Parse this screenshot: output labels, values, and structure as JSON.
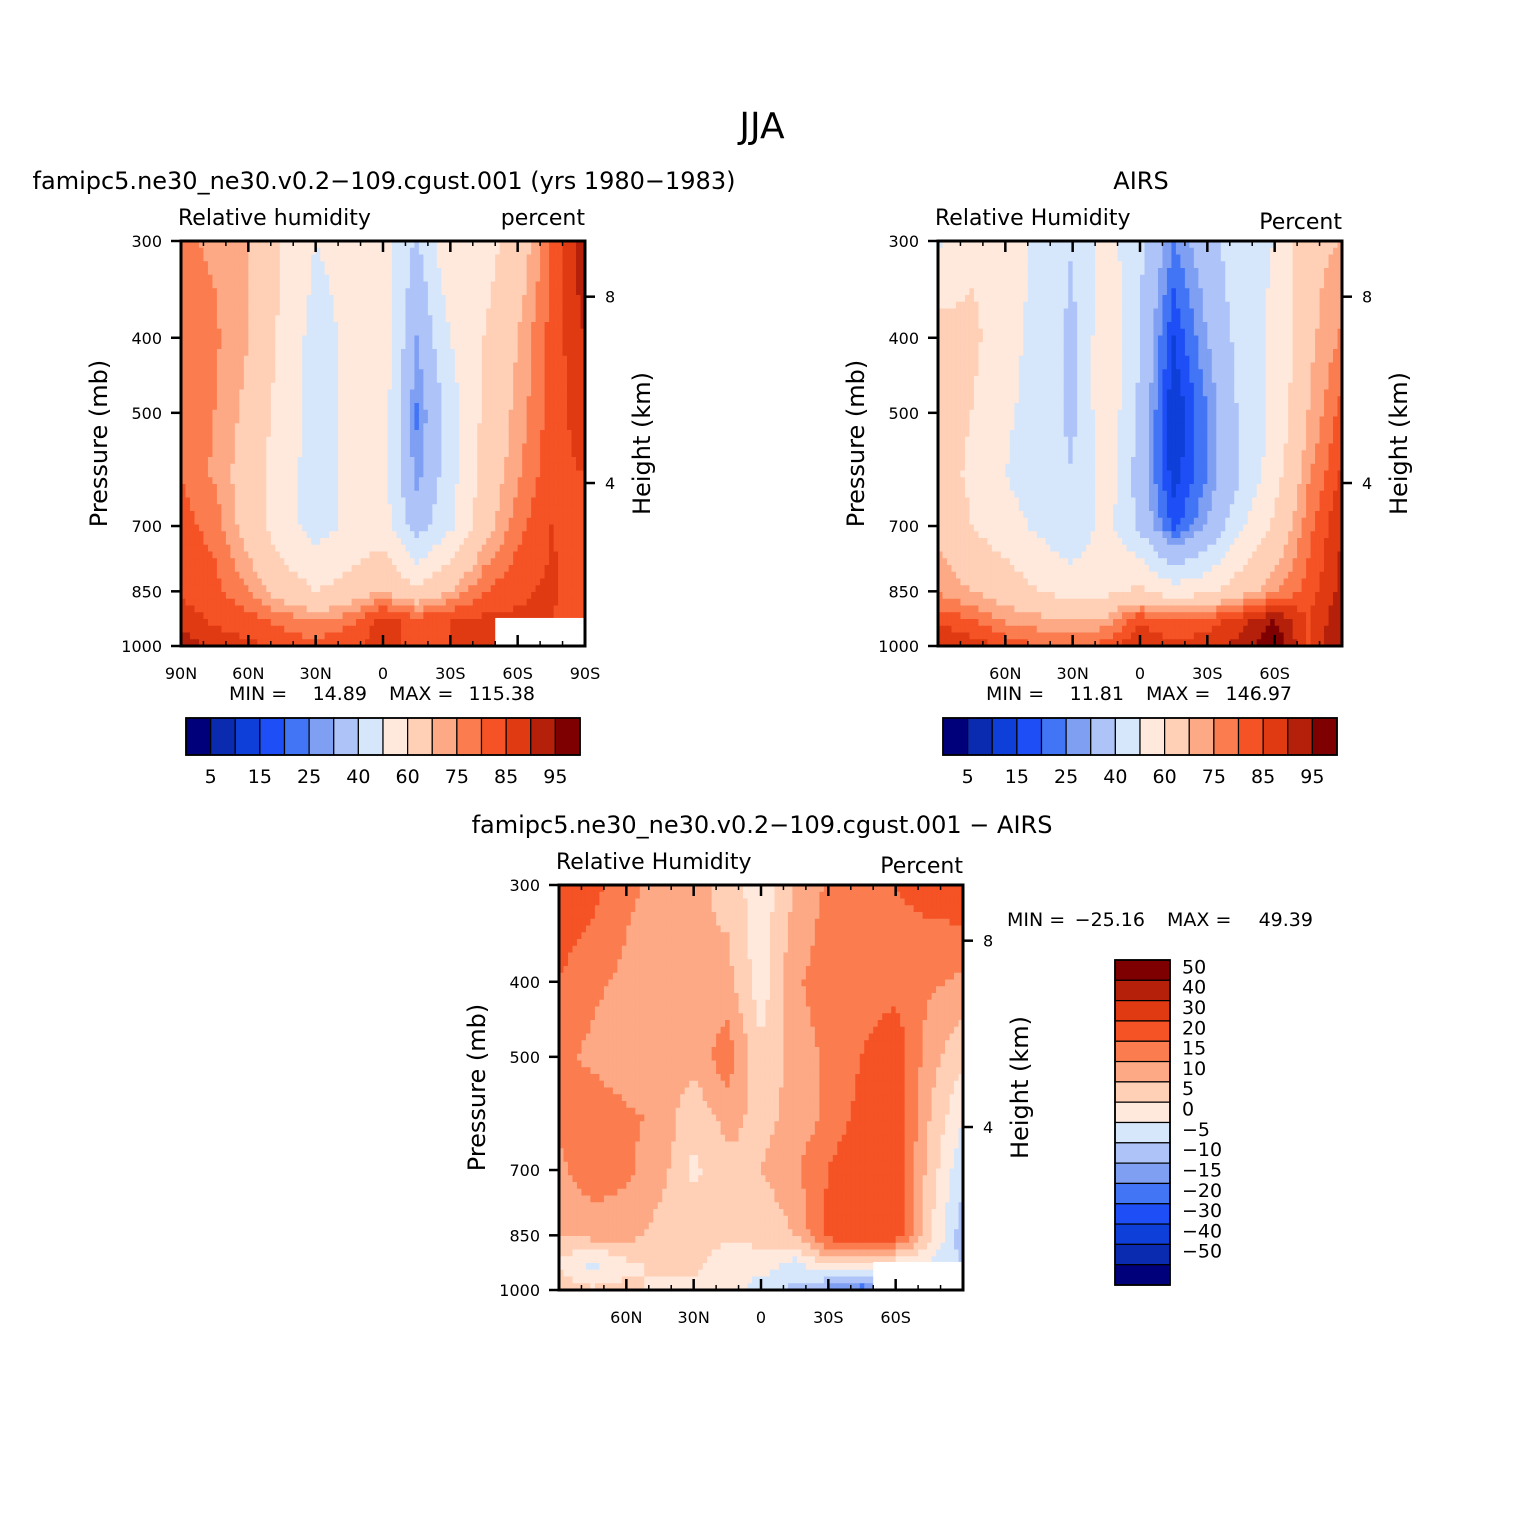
{
  "page_title": "JJA",
  "colors": {
    "neg": [
      "#00007a",
      "#0a2bb0",
      "#0f3fd9",
      "#1e4ef5",
      "#4275f5",
      "#7f9ff3",
      "#aec4f9",
      "#d7e7fb"
    ],
    "pos": [
      "#ffe9dc",
      "#ffcfb6",
      "#fda985",
      "#fb7c4f",
      "#f55225",
      "#e03a12",
      "#b5200a",
      "#7f0000"
    ],
    "missing": "#ffffff"
  },
  "chart_data": [
    {
      "id": "model",
      "type": "heatmap",
      "subtype": "filled-contour",
      "title": "famipc5.ne30_ne30.v0.2−109.cgust.001 (yrs 1980−1983)",
      "left_label": "Relative humidity",
      "right_label": "percent",
      "ylabel": "Pressure (mb)",
      "y2label": "Height (km)",
      "x_ticks": [
        "90N",
        "60N",
        "30N",
        "0",
        "30S",
        "60S",
        "90S"
      ],
      "x_range": [
        90,
        -90
      ],
      "y_ticks": [
        "300",
        "400",
        "500",
        "700",
        "850",
        "1000"
      ],
      "y_range": [
        300,
        1000
      ],
      "y_scale": "log",
      "y2_ticks": [
        "8",
        "4"
      ],
      "minmax_text": {
        "min_label": "MIN =",
        "min": "14.89",
        "max_label": "MAX =",
        "max": "115.38"
      },
      "levels": [
        5,
        10,
        15,
        20,
        25,
        30,
        40,
        50,
        60,
        70,
        75,
        80,
        85,
        90,
        95
      ],
      "colorbar_labels": [
        "5",
        "15",
        "25",
        "40",
        "60",
        "75",
        "85",
        "95"
      ],
      "colorbar_orientation": "horizontal",
      "field": {
        "lat": [
          90,
          75,
          60,
          45,
          30,
          15,
          0,
          -15,
          -30,
          -45,
          -60,
          -75,
          -90
        ],
        "pressure": [
          300,
          400,
          500,
          600,
          700,
          850,
          925,
          1000
        ],
        "values": [
          [
            76,
            74,
            70,
            60,
            50,
            53,
            56,
            38,
            60,
            56,
            64,
            80,
            95
          ],
          [
            78,
            76,
            70,
            58,
            46,
            52,
            56,
            30,
            50,
            60,
            70,
            82,
            90
          ],
          [
            78,
            75,
            68,
            56,
            46,
            52,
            56,
            24,
            45,
            62,
            72,
            82,
            88
          ],
          [
            80,
            74,
            66,
            54,
            46,
            52,
            54,
            27,
            46,
            64,
            74,
            84,
            85
          ],
          [
            82,
            78,
            66,
            54,
            46,
            52,
            55,
            35,
            48,
            66,
            78,
            85,
            83
          ],
          [
            84,
            82,
            75,
            66,
            60,
            64,
            70,
            62,
            70,
            80,
            84,
            86,
            82
          ],
          [
            88,
            84,
            82,
            78,
            74,
            78,
            88,
            82,
            85,
            86,
            86,
            85,
            82
          ],
          [
            94,
            88,
            86,
            84,
            82,
            85,
            86,
            84,
            85,
            86,
            86,
            84,
            82
          ]
        ],
        "missing_box": {
          "lat_from": -50,
          "lat_to": -90,
          "p_from": 920,
          "p_to": 1000
        }
      }
    },
    {
      "id": "obs",
      "type": "heatmap",
      "subtype": "filled-contour",
      "title": "AIRS",
      "left_label": "Relative Humidity",
      "right_label": "Percent",
      "ylabel": "Pressure (mb)",
      "y2label": "Height (km)",
      "x_ticks": [
        "60N",
        "30N",
        "0",
        "30S",
        "60S"
      ],
      "x_range": [
        90,
        -90
      ],
      "y_ticks": [
        "300",
        "400",
        "500",
        "700",
        "850",
        "1000"
      ],
      "y_range": [
        300,
        1000
      ],
      "y_scale": "log",
      "y2_ticks": [
        "8",
        "4"
      ],
      "minmax_text": {
        "min_label": "MIN =",
        "min": "11.81",
        "max_label": "MAX =",
        "max": "146.97"
      },
      "levels": [
        5,
        10,
        15,
        20,
        25,
        30,
        40,
        50,
        60,
        70,
        75,
        80,
        85,
        90,
        95
      ],
      "colorbar_labels": [
        "5",
        "15",
        "25",
        "40",
        "60",
        "75",
        "85",
        "95"
      ],
      "colorbar_orientation": "horizontal",
      "field": {
        "lat": [
          90,
          75,
          60,
          45,
          30,
          15,
          0,
          -15,
          -30,
          -45,
          -60,
          -75,
          -90
        ],
        "pressure": [
          300,
          400,
          500,
          600,
          700,
          850,
          925,
          1000
        ],
        "values": [
          [
            48,
            58,
            60,
            46,
            40,
            55,
            42,
            25,
            35,
            48,
            50,
            68,
            70
          ],
          [
            65,
            62,
            55,
            45,
            38,
            58,
            40,
            15,
            30,
            44,
            52,
            68,
            76
          ],
          [
            66,
            60,
            52,
            45,
            38,
            58,
            38,
            10,
            25,
            42,
            52,
            70,
            82
          ],
          [
            65,
            58,
            50,
            44,
            40,
            56,
            35,
            12,
            25,
            40,
            56,
            74,
            86
          ],
          [
            68,
            60,
            54,
            48,
            42,
            54,
            38,
            18,
            30,
            48,
            62,
            78,
            90
          ],
          [
            74,
            70,
            66,
            60,
            56,
            58,
            62,
            54,
            58,
            66,
            74,
            82,
            92
          ],
          [
            84,
            80,
            74,
            72,
            70,
            72,
            84,
            80,
            82,
            88,
            95,
            85,
            94
          ],
          [
            90,
            88,
            84,
            80,
            78,
            82,
            90,
            86,
            88,
            92,
            100,
            84,
            96
          ]
        ],
        "missing_box": null
      }
    },
    {
      "id": "diff",
      "type": "heatmap",
      "subtype": "filled-contour",
      "title": "famipc5.ne30_ne30.v0.2−109.cgust.001 − AIRS",
      "left_label": "Relative Humidity",
      "right_label": "Percent",
      "ylabel": "Pressure (mb)",
      "y2label": "Height (km)",
      "x_ticks": [
        "60N",
        "30N",
        "0",
        "30S",
        "60S"
      ],
      "x_range": [
        90,
        -90
      ],
      "y_ticks": [
        "300",
        "400",
        "500",
        "700",
        "850",
        "1000"
      ],
      "y_range": [
        300,
        1000
      ],
      "y_scale": "log",
      "y2_ticks": [
        "8",
        "4"
      ],
      "minmax_text": {
        "min_label": "MIN =",
        "min": "−25.16",
        "max_label": "MAX =",
        "max": "49.39"
      },
      "levels": [
        -50,
        -40,
        -30,
        -20,
        -15,
        -10,
        -5,
        0,
        5,
        10,
        15,
        20,
        30,
        40,
        50
      ],
      "colorbar_labels": [
        "50",
        "40",
        "30",
        "20",
        "15",
        "10",
        "5",
        "0",
        "−5",
        "−10",
        "−15",
        "−20",
        "−30",
        "−40",
        "−50"
      ],
      "colorbar_orientation": "vertical",
      "field": {
        "lat": [
          90,
          75,
          60,
          45,
          30,
          15,
          0,
          -15,
          -30,
          -45,
          -60,
          -75,
          -90
        ],
        "pressure": [
          300,
          400,
          500,
          600,
          700,
          850,
          925,
          1000
        ],
        "values": [
          [
            24,
            22,
            16,
            14,
            12,
            8,
            2,
            10,
            16,
            18,
            20,
            22,
            24
          ],
          [
            20,
            16,
            14,
            12,
            10,
            12,
            2,
            14,
            18,
            18,
            18,
            16,
            14
          ],
          [
            16,
            14,
            12,
            12,
            12,
            18,
            6,
            12,
            16,
            20,
            24,
            12,
            6
          ],
          [
            16,
            18,
            16,
            14,
            6,
            12,
            8,
            12,
            16,
            22,
            24,
            10,
            0
          ],
          [
            14,
            18,
            16,
            12,
            4,
            8,
            10,
            14,
            20,
            26,
            24,
            8,
            -4
          ],
          [
            10,
            12,
            12,
            8,
            8,
            6,
            6,
            10,
            22,
            26,
            24,
            6,
            -8
          ],
          [
            4,
            -2,
            4,
            6,
            6,
            2,
            4,
            -2,
            6,
            4,
            2,
            0,
            -6
          ],
          [
            8,
            6,
            6,
            4,
            4,
            4,
            -4,
            -6,
            -12,
            -18,
            -10,
            -4,
            -4
          ]
        ],
        "missing_box": {
          "lat_from": -50,
          "lat_to": -90,
          "p_from": 920,
          "p_to": 1000
        }
      }
    }
  ]
}
